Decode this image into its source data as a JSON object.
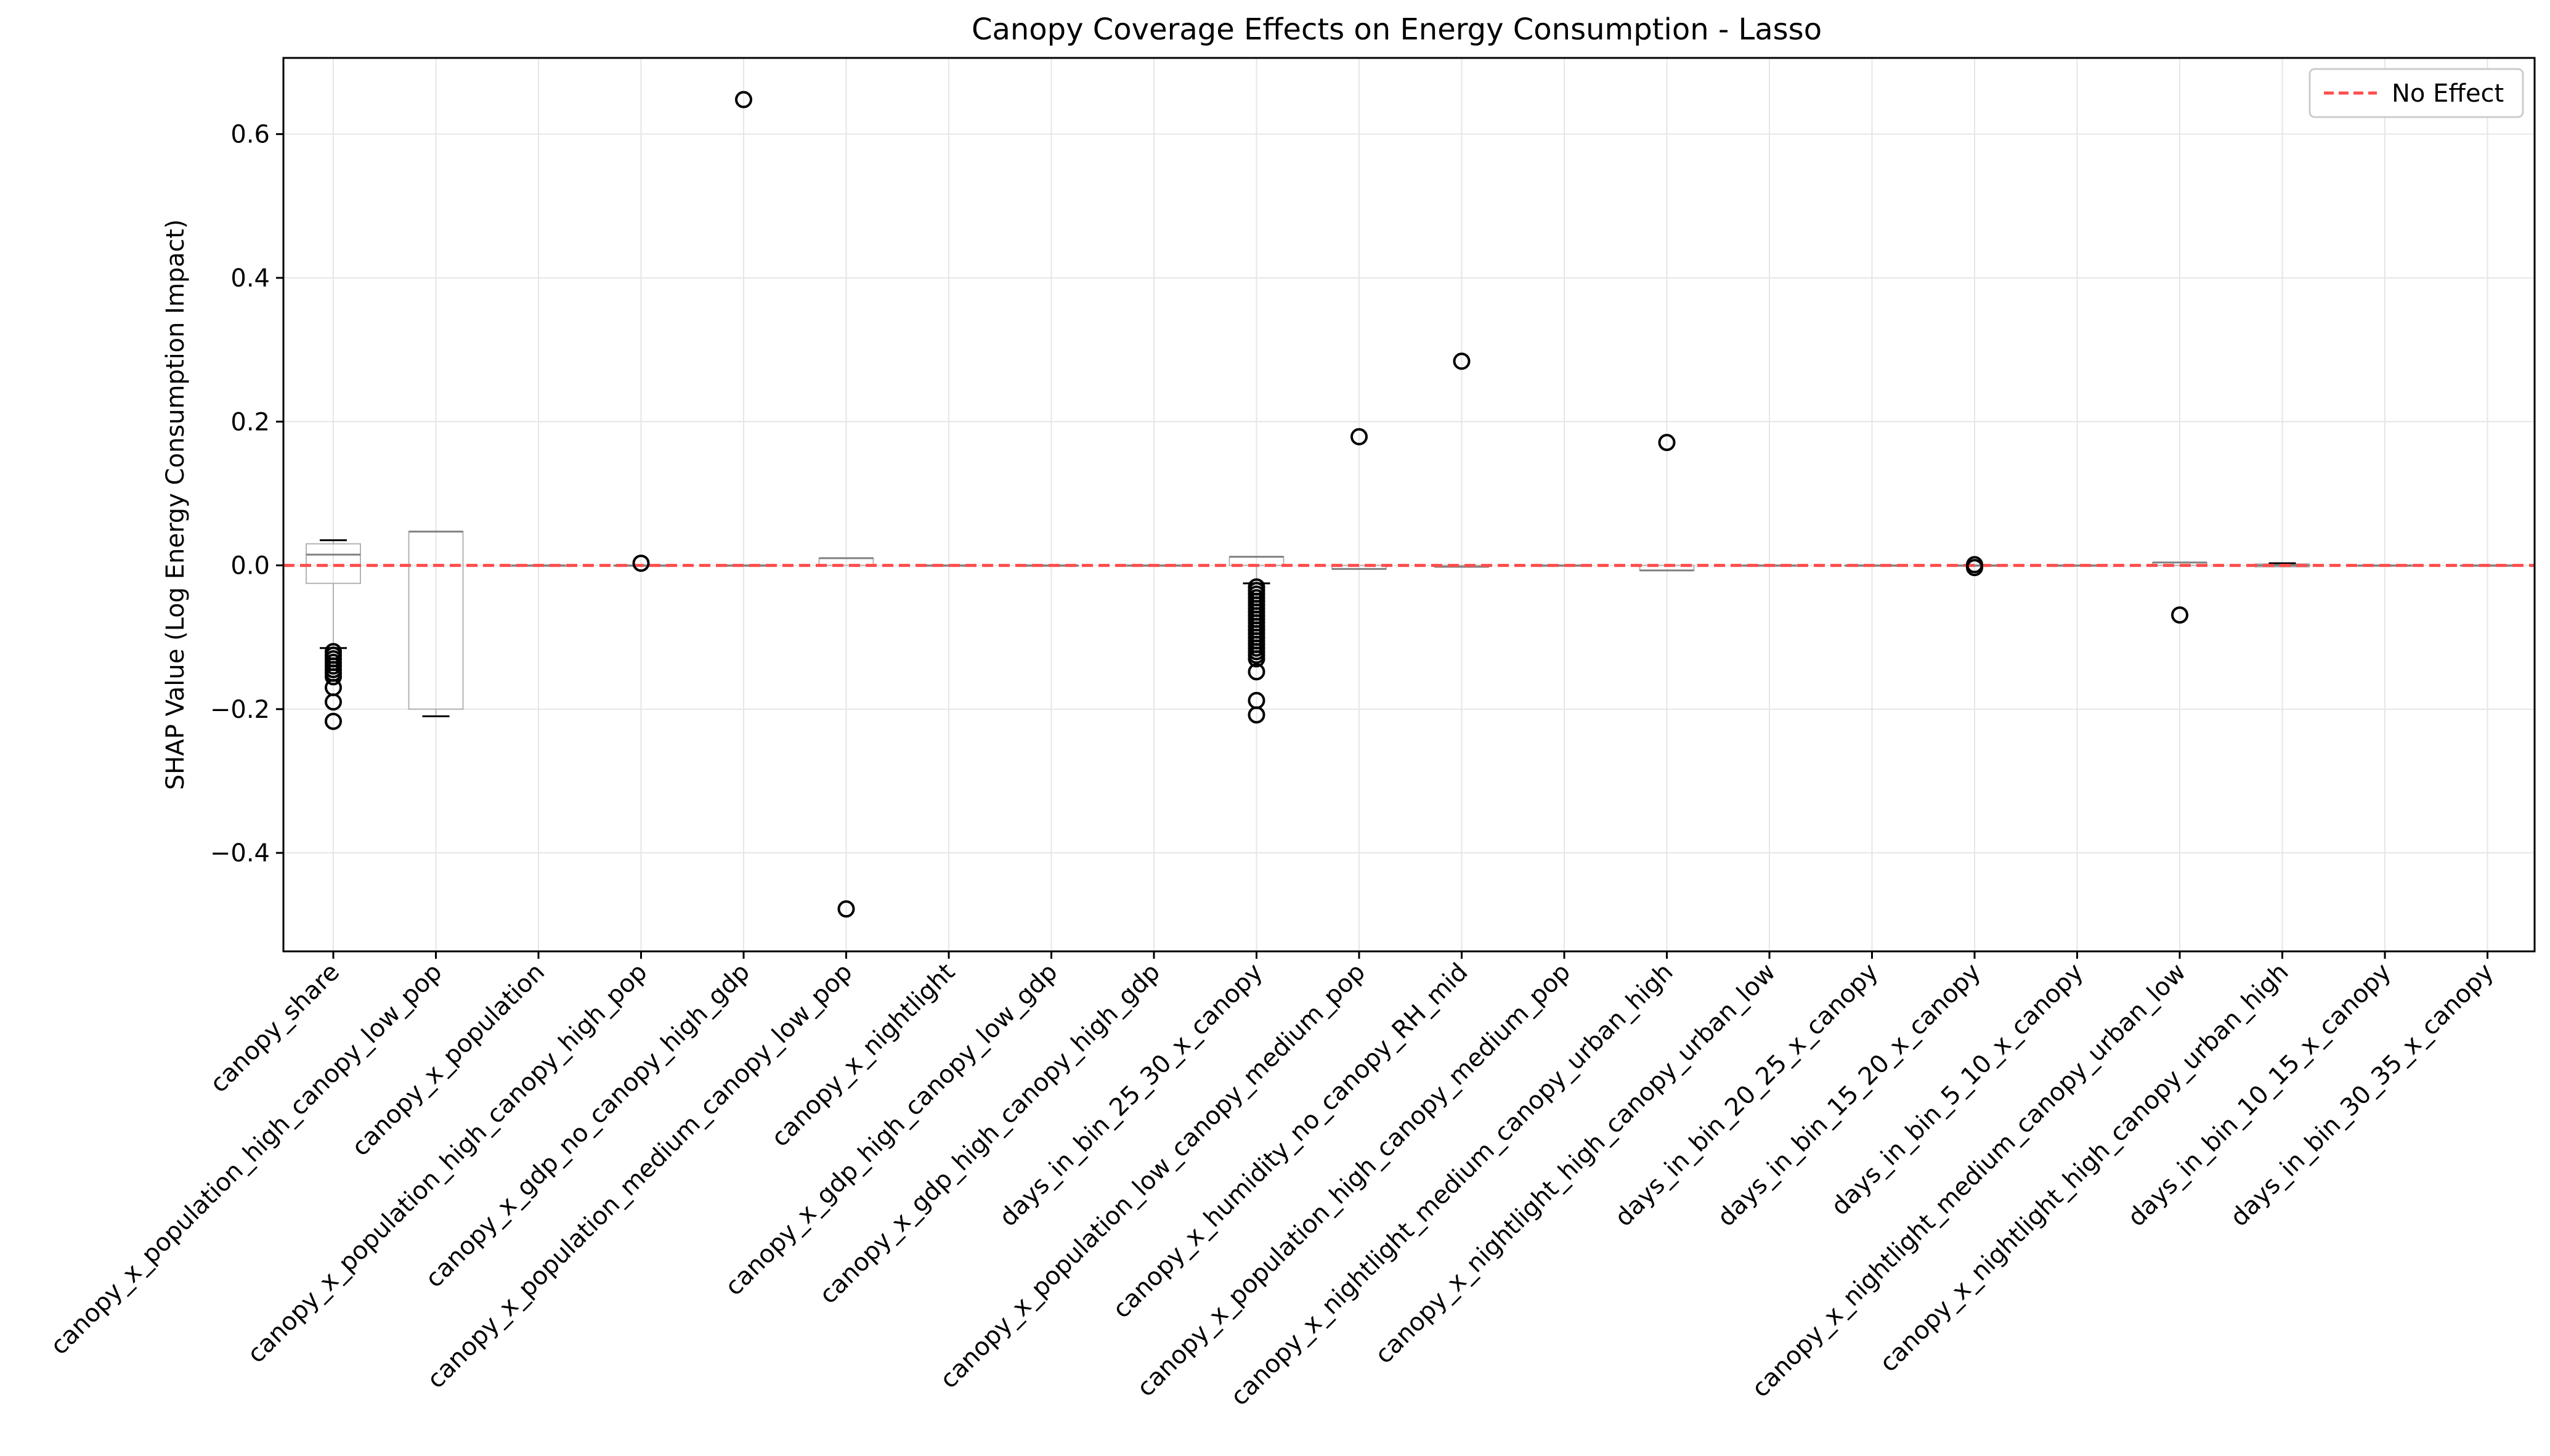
{
  "chart_data": {
    "type": "box",
    "title": "Canopy Coverage Effects on Energy Consumption - Lasso",
    "xlabel": "",
    "ylabel": "SHAP Value (Log Energy Consumption Impact)",
    "ylim": [
      -0.537,
      0.706
    ],
    "yticks": [
      -0.4,
      -0.2,
      0.0,
      0.2,
      0.4,
      0.6
    ],
    "ytick_labels": [
      "−0.4",
      "−0.2",
      "0.0",
      "0.2",
      "0.4",
      "0.6"
    ],
    "grid": true,
    "legend": {
      "position": "top-right",
      "entries": [
        {
          "label": "No Effect",
          "color": "#ff4d4d",
          "style": "dashed"
        }
      ]
    },
    "reference_line": {
      "y": 0.0,
      "label": "No Effect",
      "color": "#ff4d4d"
    },
    "categories": [
      "canopy_share",
      "canopy_x_population_high_canopy_low_pop",
      "canopy_x_population",
      "canopy_x_population_high_canopy_high_pop",
      "canopy_x_gdp_no_canopy_high_gdp",
      "canopy_x_population_medium_canopy_low_pop",
      "canopy_x_nightlight",
      "canopy_x_gdp_high_canopy_low_gdp",
      "canopy_x_gdp_high_canopy_high_gdp",
      "days_in_bin_25_30_x_canopy",
      "canopy_x_population_low_canopy_medium_pop",
      "canopy_x_humidity_no_canopy_RH_mid",
      "canopy_x_population_high_canopy_medium_pop",
      "canopy_x_nightlight_medium_canopy_urban_high",
      "canopy_x_nightlight_high_canopy_urban_low",
      "days_in_bin_20_25_x_canopy",
      "days_in_bin_15_20_x_canopy",
      "days_in_bin_5_10_x_canopy",
      "canopy_x_nightlight_medium_canopy_urban_low",
      "canopy_x_nightlight_high_canopy_urban_high",
      "days_in_bin_10_15_x_canopy",
      "days_in_bin_30_35_x_canopy"
    ],
    "boxes": [
      {
        "whisker_low": -0.115,
        "q1": -0.025,
        "median": 0.015,
        "q3": 0.03,
        "whisker_high": 0.035,
        "outliers": [
          -0.12,
          -0.125,
          -0.13,
          -0.135,
          -0.14,
          -0.145,
          -0.15,
          -0.155,
          -0.17,
          -0.19,
          -0.217
        ]
      },
      {
        "whisker_low": -0.21,
        "q1": -0.2,
        "median": 0.047,
        "q3": 0.047,
        "whisker_high": 0.047,
        "outliers": []
      },
      {
        "whisker_low": 0.0,
        "q1": 0.0,
        "median": 0.0,
        "q3": 0.0,
        "whisker_high": 0.0,
        "outliers": []
      },
      {
        "whisker_low": 0.0,
        "q1": 0.0,
        "median": 0.0,
        "q3": 0.0,
        "whisker_high": 0.0,
        "outliers": [
          0.003
        ]
      },
      {
        "whisker_low": 0.0,
        "q1": 0.0,
        "median": 0.0,
        "q3": 0.0,
        "whisker_high": 0.0,
        "outliers": [
          0.648
        ]
      },
      {
        "whisker_low": 0.0,
        "q1": 0.0,
        "median": 0.01,
        "q3": 0.01,
        "whisker_high": 0.01,
        "outliers": [
          -0.478
        ]
      },
      {
        "whisker_low": 0.0,
        "q1": 0.0,
        "median": 0.0,
        "q3": 0.0,
        "whisker_high": 0.0,
        "outliers": []
      },
      {
        "whisker_low": 0.0,
        "q1": 0.0,
        "median": 0.0,
        "q3": 0.0,
        "whisker_high": 0.0,
        "outliers": []
      },
      {
        "whisker_low": 0.0,
        "q1": 0.0,
        "median": 0.0,
        "q3": 0.0,
        "whisker_high": 0.0,
        "outliers": []
      },
      {
        "whisker_low": -0.025,
        "q1": 0.0,
        "median": 0.012,
        "q3": 0.012,
        "whisker_high": 0.012,
        "outliers": [
          -0.03,
          -0.035,
          -0.04,
          -0.045,
          -0.05,
          -0.055,
          -0.06,
          -0.065,
          -0.07,
          -0.075,
          -0.08,
          -0.085,
          -0.09,
          -0.095,
          -0.1,
          -0.105,
          -0.11,
          -0.115,
          -0.12,
          -0.125,
          -0.13,
          -0.148,
          -0.188,
          -0.208
        ]
      },
      {
        "whisker_low": -0.005,
        "q1": -0.005,
        "median": -0.005,
        "q3": 0.0,
        "whisker_high": 0.0,
        "outliers": [
          0.179
        ]
      },
      {
        "whisker_low": -0.002,
        "q1": -0.002,
        "median": -0.002,
        "q3": 0.0,
        "whisker_high": 0.0,
        "outliers": [
          0.284
        ]
      },
      {
        "whisker_low": 0.0,
        "q1": 0.0,
        "median": 0.0,
        "q3": 0.0,
        "whisker_high": 0.0,
        "outliers": []
      },
      {
        "whisker_low": -0.007,
        "q1": -0.007,
        "median": -0.007,
        "q3": 0.0,
        "whisker_high": 0.0,
        "outliers": [
          0.171
        ]
      },
      {
        "whisker_low": 0.0,
        "q1": 0.0,
        "median": 0.0,
        "q3": 0.0,
        "whisker_high": 0.0,
        "outliers": []
      },
      {
        "whisker_low": 0.0,
        "q1": 0.0,
        "median": 0.0,
        "q3": 0.0,
        "whisker_high": 0.0,
        "outliers": []
      },
      {
        "whisker_low": 0.0,
        "q1": 0.0,
        "median": 0.0,
        "q3": 0.0,
        "whisker_high": 0.0,
        "outliers": [
          0.001,
          -0.003
        ]
      },
      {
        "whisker_low": 0.0,
        "q1": 0.0,
        "median": 0.0,
        "q3": 0.0,
        "whisker_high": 0.0,
        "outliers": []
      },
      {
        "whisker_low": 0.0,
        "q1": 0.0,
        "median": 0.004,
        "q3": 0.004,
        "whisker_high": 0.004,
        "outliers": [
          -0.069
        ]
      },
      {
        "whisker_low": -0.002,
        "q1": -0.002,
        "median": 0.0,
        "q3": 0.002,
        "whisker_high": 0.003,
        "outliers": []
      },
      {
        "whisker_low": 0.0,
        "q1": 0.0,
        "median": 0.0,
        "q3": 0.0,
        "whisker_high": 0.0,
        "outliers": []
      },
      {
        "whisker_low": 0.0,
        "q1": 0.0,
        "median": 0.0,
        "q3": 0.0,
        "whisker_high": 0.0,
        "outliers": []
      }
    ],
    "colors": {
      "box": "#b3b3b3",
      "median": "#808080",
      "whisker_cap": "#000000",
      "outlier": "#000000",
      "grid": "#e6e6e6"
    }
  }
}
